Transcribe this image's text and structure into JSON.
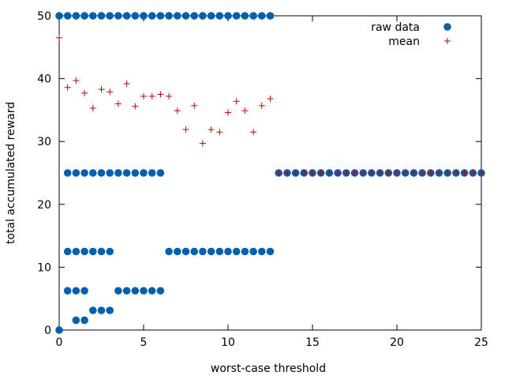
{
  "chart_data": {
    "type": "scatter",
    "xlabel": "worst-case threshold",
    "ylabel": "total accumulated reward",
    "xlim": [
      0,
      25
    ],
    "ylim": [
      0,
      50
    ],
    "xticks": [
      0,
      5,
      10,
      15,
      20,
      25
    ],
    "yticks": [
      0,
      10,
      20,
      30,
      40,
      50
    ],
    "grid": false,
    "legend_position": "top-right",
    "series": [
      {
        "name": "raw data",
        "marker": "filled-circle",
        "color": "#0060ad",
        "groups": [
          {
            "x": [
              0.0,
              0.5,
              1.0,
              1.5,
              2.0,
              2.5,
              3.0,
              3.5,
              4.0,
              4.5,
              5.0,
              5.5,
              6.0,
              6.5,
              7.0,
              7.5,
              8.0,
              8.5,
              9.0,
              9.5,
              10.0,
              10.5,
              11.0,
              11.5,
              12.0,
              12.5
            ],
            "y": 50
          },
          {
            "x": [
              0.5,
              1.0,
              1.5,
              2.0,
              2.5,
              3.0,
              3.5,
              4.0,
              4.5,
              5.0,
              5.5,
              6.0
            ],
            "y": 25
          },
          {
            "x": [
              13.0,
              13.5,
              14.0,
              14.5,
              15.0,
              15.5,
              16.0,
              16.5,
              17.0,
              17.5,
              18.0,
              18.5,
              19.0,
              19.5,
              20.0,
              20.5,
              21.0,
              21.5,
              22.0,
              22.5,
              23.0,
              23.5,
              24.0,
              24.5,
              25.0
            ],
            "y": 25
          },
          {
            "x": [
              0.5,
              1.0,
              1.5,
              2.0,
              2.5,
              3.0
            ],
            "y": 12.5
          },
          {
            "x": [
              6.5,
              7.0,
              7.5,
              8.0,
              8.5,
              9.0,
              9.5,
              10.0,
              10.5,
              11.0,
              11.5,
              12.0,
              12.5
            ],
            "y": 12.5
          },
          {
            "x": [
              0.5,
              1.0,
              1.5
            ],
            "y": 6.25
          },
          {
            "x": [
              3.5,
              4.0,
              4.5,
              5.0,
              5.5,
              6.0
            ],
            "y": 6.25
          },
          {
            "x": [
              2.0,
              2.5,
              3.0
            ],
            "y": 3.125
          },
          {
            "x": [
              1.0,
              1.5
            ],
            "y": 1.5625
          },
          {
            "x": [
              0.0
            ],
            "y": 0
          }
        ]
      },
      {
        "name": "mean",
        "marker": "plus",
        "color": "#c00000",
        "points": [
          {
            "x": 0.0,
            "y": 46.5
          },
          {
            "x": 0.5,
            "y": 38.6
          },
          {
            "x": 1.0,
            "y": 39.7
          },
          {
            "x": 1.5,
            "y": 37.7
          },
          {
            "x": 2.0,
            "y": 35.3
          },
          {
            "x": 2.5,
            "y": 38.3
          },
          {
            "x": 3.0,
            "y": 37.9
          },
          {
            "x": 3.5,
            "y": 36.0
          },
          {
            "x": 4.0,
            "y": 39.2
          },
          {
            "x": 4.5,
            "y": 35.6
          },
          {
            "x": 5.0,
            "y": 37.2
          },
          {
            "x": 5.5,
            "y": 37.2
          },
          {
            "x": 6.0,
            "y": 37.5
          },
          {
            "x": 6.5,
            "y": 37.2
          },
          {
            "x": 7.0,
            "y": 34.9
          },
          {
            "x": 7.5,
            "y": 31.9
          },
          {
            "x": 8.0,
            "y": 35.7
          },
          {
            "x": 8.5,
            "y": 29.7
          },
          {
            "x": 9.0,
            "y": 31.9
          },
          {
            "x": 9.5,
            "y": 31.5
          },
          {
            "x": 10.0,
            "y": 34.6
          },
          {
            "x": 10.5,
            "y": 36.4
          },
          {
            "x": 11.0,
            "y": 34.9
          },
          {
            "x": 11.5,
            "y": 31.5
          },
          {
            "x": 12.0,
            "y": 35.7
          },
          {
            "x": 12.5,
            "y": 36.8
          },
          {
            "x": 13.0,
            "y": 25
          },
          {
            "x": 13.5,
            "y": 25
          },
          {
            "x": 14.0,
            "y": 25
          },
          {
            "x": 14.5,
            "y": 25
          },
          {
            "x": 15.0,
            "y": 25
          },
          {
            "x": 15.5,
            "y": 25
          },
          {
            "x": 16.0,
            "y": 25
          },
          {
            "x": 16.5,
            "y": 25
          },
          {
            "x": 17.0,
            "y": 25
          },
          {
            "x": 17.5,
            "y": 25
          },
          {
            "x": 18.0,
            "y": 25
          },
          {
            "x": 18.5,
            "y": 25
          },
          {
            "x": 19.0,
            "y": 25
          },
          {
            "x": 19.5,
            "y": 25
          },
          {
            "x": 20.0,
            "y": 25
          },
          {
            "x": 20.5,
            "y": 25
          },
          {
            "x": 21.0,
            "y": 25
          },
          {
            "x": 21.5,
            "y": 25
          },
          {
            "x": 22.0,
            "y": 25
          },
          {
            "x": 22.5,
            "y": 25
          },
          {
            "x": 23.0,
            "y": 25
          },
          {
            "x": 23.5,
            "y": 25
          },
          {
            "x": 24.0,
            "y": 25
          },
          {
            "x": 24.5,
            "y": 25
          },
          {
            "x": 25.0,
            "y": 25
          }
        ]
      }
    ]
  }
}
